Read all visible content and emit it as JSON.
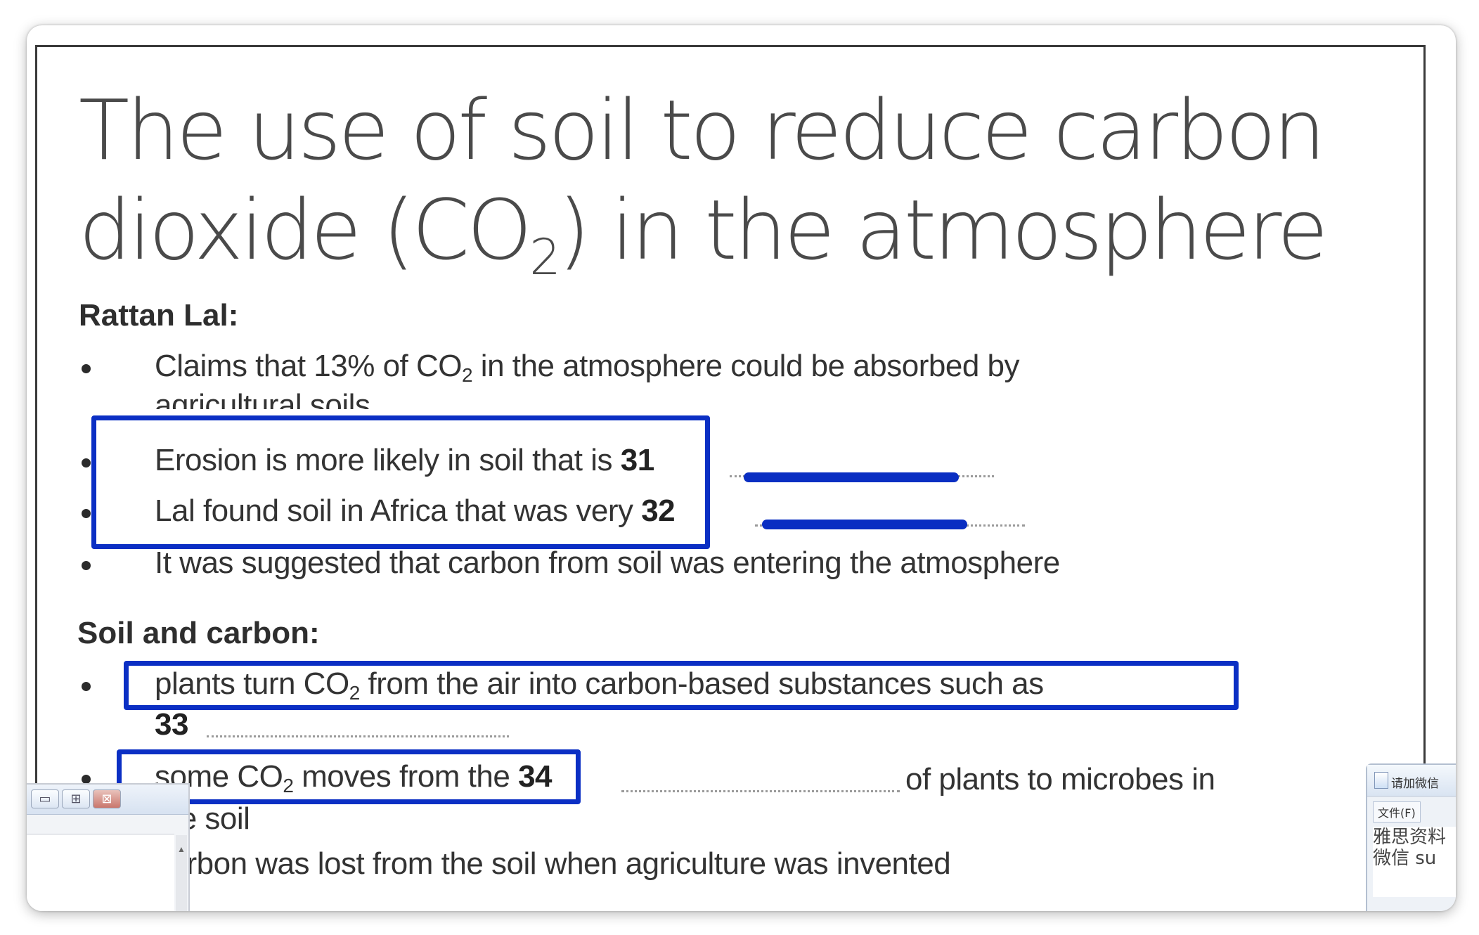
{
  "document": {
    "title_line1": "The use of soil to reduce carbon",
    "title_line2_pre": "dioxide (CO",
    "title_line2_sub": "2",
    "title_line2_post": ") in the atmosphere",
    "sections": [
      {
        "heading": "Rattan Lal:",
        "items": [
          {
            "pre": "Claims that 13% of CO",
            "sub": "2",
            "post": " in the atmosphere could be absorbed by",
            "cont": "agricultural soils"
          },
          {
            "text": "Erosion is more likely in soil that is",
            "qnum": "31"
          },
          {
            "text": "Lal found soil in Africa that was very",
            "qnum": "32"
          },
          {
            "text": "It was suggested that carbon from soil was entering the atmosphere"
          }
        ]
      },
      {
        "heading": "Soil and carbon:",
        "items": [
          {
            "pre": "plants turn CO",
            "sub": "2",
            "post": " from the air into carbon-based substances such as",
            "qnum": "33"
          },
          {
            "pre": "some CO",
            "sub": "2",
            "post": " moves from the",
            "qnum": "34",
            "after": "of plants to microbes in",
            "cont": "the soil"
          },
          {
            "text": "carbon was lost from the soil when agriculture was invented"
          }
        ]
      }
    ]
  },
  "left_window": {
    "minimize": "▭",
    "restore": "⊞",
    "close": "⊠",
    "scroll_arrow": "▲"
  },
  "right_window": {
    "title": "请加微信",
    "menu": "文件(F)",
    "text": "雅思资料 微信 su"
  },
  "colors": {
    "highlight": "#0b2fc4",
    "text": "#333333",
    "title": "#4a4a4a"
  }
}
